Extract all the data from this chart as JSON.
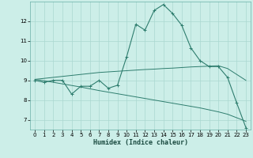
{
  "xlabel": "Humidex (Indice chaleur)",
  "bg_color": "#cceee8",
  "line_color": "#2e7d6e",
  "grid_color": "#aad8d0",
  "x_values": [
    0,
    1,
    2,
    3,
    4,
    5,
    6,
    7,
    8,
    9,
    10,
    11,
    12,
    13,
    14,
    15,
    16,
    17,
    18,
    19,
    20,
    21,
    22,
    23
  ],
  "y_main": [
    9.0,
    8.9,
    9.0,
    9.0,
    8.3,
    8.7,
    8.7,
    9.0,
    8.6,
    8.75,
    10.2,
    11.85,
    11.55,
    12.55,
    12.85,
    12.4,
    11.8,
    10.65,
    10.0,
    9.7,
    9.7,
    9.15,
    7.85,
    6.6
  ],
  "y_trend1": [
    9.05,
    9.1,
    9.15,
    9.2,
    9.25,
    9.3,
    9.35,
    9.4,
    9.43,
    9.46,
    9.49,
    9.52,
    9.55,
    9.57,
    9.6,
    9.62,
    9.65,
    9.68,
    9.7,
    9.72,
    9.74,
    9.6,
    9.3,
    9.0
  ],
  "y_trend2": [
    9.05,
    8.98,
    8.9,
    8.82,
    8.74,
    8.66,
    8.57,
    8.48,
    8.4,
    8.32,
    8.24,
    8.16,
    8.08,
    8.0,
    7.92,
    7.84,
    7.76,
    7.68,
    7.6,
    7.5,
    7.4,
    7.28,
    7.1,
    6.92
  ],
  "ylim": [
    6.5,
    13.0
  ],
  "xlim": [
    -0.5,
    23.5
  ],
  "yticks": [
    7,
    8,
    9,
    10,
    11,
    12
  ],
  "xticks": [
    0,
    1,
    2,
    3,
    4,
    5,
    6,
    7,
    8,
    9,
    10,
    11,
    12,
    13,
    14,
    15,
    16,
    17,
    18,
    19,
    20,
    21,
    22,
    23
  ]
}
